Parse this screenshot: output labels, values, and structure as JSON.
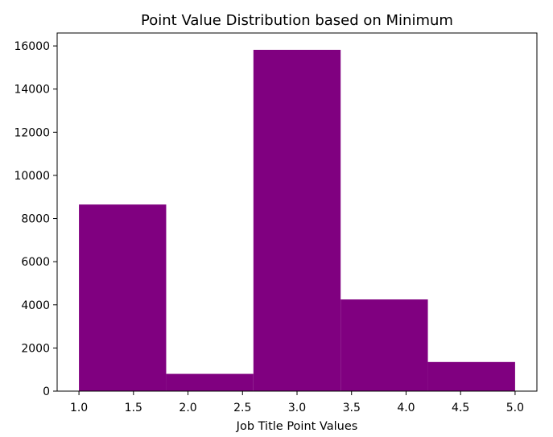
{
  "chart_data": {
    "type": "bar",
    "title": "Point Value Distribution based on Minimum",
    "xlabel": "Job Title Point Values",
    "ylabel": "",
    "bins": [
      {
        "start": 1.0,
        "end": 1.8,
        "count": 8650
      },
      {
        "start": 1.8,
        "end": 2.6,
        "count": 800
      },
      {
        "start": 2.6,
        "end": 3.4,
        "count": 15820
      },
      {
        "start": 3.4,
        "end": 4.2,
        "count": 4250
      },
      {
        "start": 4.2,
        "end": 5.0,
        "count": 1350
      }
    ],
    "xlim": [
      0.8,
      5.2
    ],
    "ylim": [
      0,
      16600
    ],
    "xticks": [
      {
        "value": 1.0,
        "label": "1.0"
      },
      {
        "value": 1.5,
        "label": "1.5"
      },
      {
        "value": 2.0,
        "label": "2.0"
      },
      {
        "value": 2.5,
        "label": "2.5"
      },
      {
        "value": 3.0,
        "label": "3.0"
      },
      {
        "value": 3.5,
        "label": "3.5"
      },
      {
        "value": 4.0,
        "label": "4.0"
      },
      {
        "value": 4.5,
        "label": "4.5"
      },
      {
        "value": 5.0,
        "label": "5.0"
      }
    ],
    "yticks": [
      {
        "value": 0,
        "label": "0"
      },
      {
        "value": 2000,
        "label": "2000"
      },
      {
        "value": 4000,
        "label": "4000"
      },
      {
        "value": 6000,
        "label": "6000"
      },
      {
        "value": 8000,
        "label": "8000"
      },
      {
        "value": 10000,
        "label": "10000"
      },
      {
        "value": 12000,
        "label": "12000"
      },
      {
        "value": 14000,
        "label": "14000"
      },
      {
        "value": 16000,
        "label": "16000"
      }
    ],
    "grid": false,
    "bar_color": "#800080"
  }
}
